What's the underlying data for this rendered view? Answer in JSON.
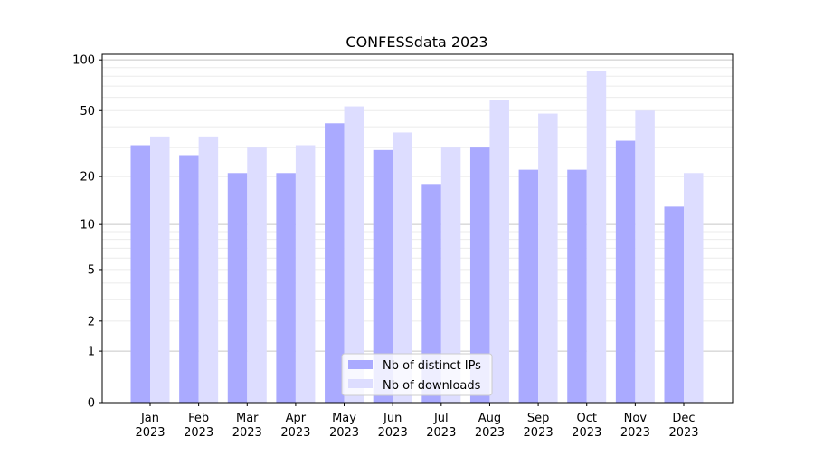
{
  "chart_data": {
    "type": "bar",
    "title": "CONFESSdata 2023",
    "xlabel": "",
    "ylabel": "",
    "yscale": "log(1+x)",
    "ylim": [
      0,
      110
    ],
    "yticks": [
      0,
      1,
      2,
      5,
      10,
      20,
      50,
      100
    ],
    "ytick_labels": [
      "0",
      "1",
      "2",
      "5",
      "10",
      "20",
      "50",
      "100"
    ],
    "grid": true,
    "legend_position": "bottom-center",
    "categories": [
      "Jan\n2023",
      "Feb\n2023",
      "Mar\n2023",
      "Apr\n2023",
      "May\n2023",
      "Jun\n2023",
      "Jul\n2023",
      "Aug\n2023",
      "Sep\n2023",
      "Oct\n2023",
      "Nov\n2023",
      "Dec\n2023"
    ],
    "series": [
      {
        "name": "Nb of distinct IPs",
        "color": "#aaaaff",
        "values": [
          31,
          27,
          21,
          21,
          42,
          29,
          18,
          30,
          22,
          22,
          33,
          13
        ]
      },
      {
        "name": "Nb of downloads",
        "color": "#ddddff",
        "values": [
          35,
          35,
          30,
          31,
          53,
          37,
          30,
          58,
          48,
          86,
          50,
          21
        ]
      }
    ]
  }
}
